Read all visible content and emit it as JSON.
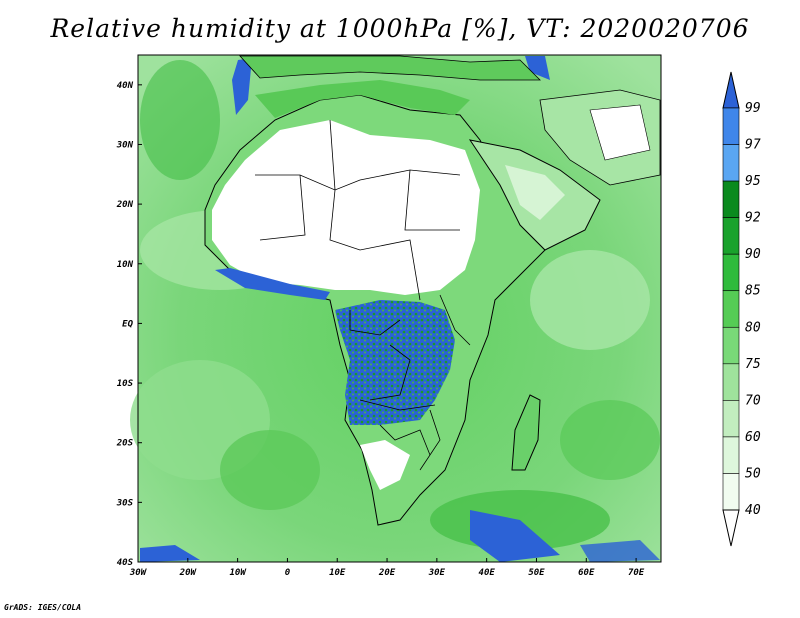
{
  "title": "Relative humidity at 1000hPa [%], VT: 2020020706",
  "credit": "GrADS: IGES/COLA",
  "map": {
    "lon_range": [
      -30,
      75
    ],
    "lat_range": [
      -40,
      45
    ],
    "x_ticks": [
      "30W",
      "20W",
      "10W",
      "0",
      "10E",
      "20E",
      "30E",
      "40E",
      "50E",
      "60E",
      "70E"
    ],
    "y_ticks": [
      "40N",
      "30N",
      "20N",
      "10N",
      "EQ",
      "10S",
      "20S",
      "30S",
      "40S"
    ]
  },
  "colorbar": {
    "levels": [
      "99",
      "97",
      "95",
      "92",
      "90",
      "85",
      "80",
      "75",
      "70",
      "60",
      "50",
      "40"
    ],
    "colors": [
      "#2c62d6",
      "#3f86ea",
      "#5aa6f2",
      "#0a8a1e",
      "#1aa22c",
      "#2fbb3c",
      "#55cc55",
      "#79d978",
      "#9fe39c",
      "#c2edbf",
      "#def7dc",
      "#f1fcf0"
    ]
  }
}
